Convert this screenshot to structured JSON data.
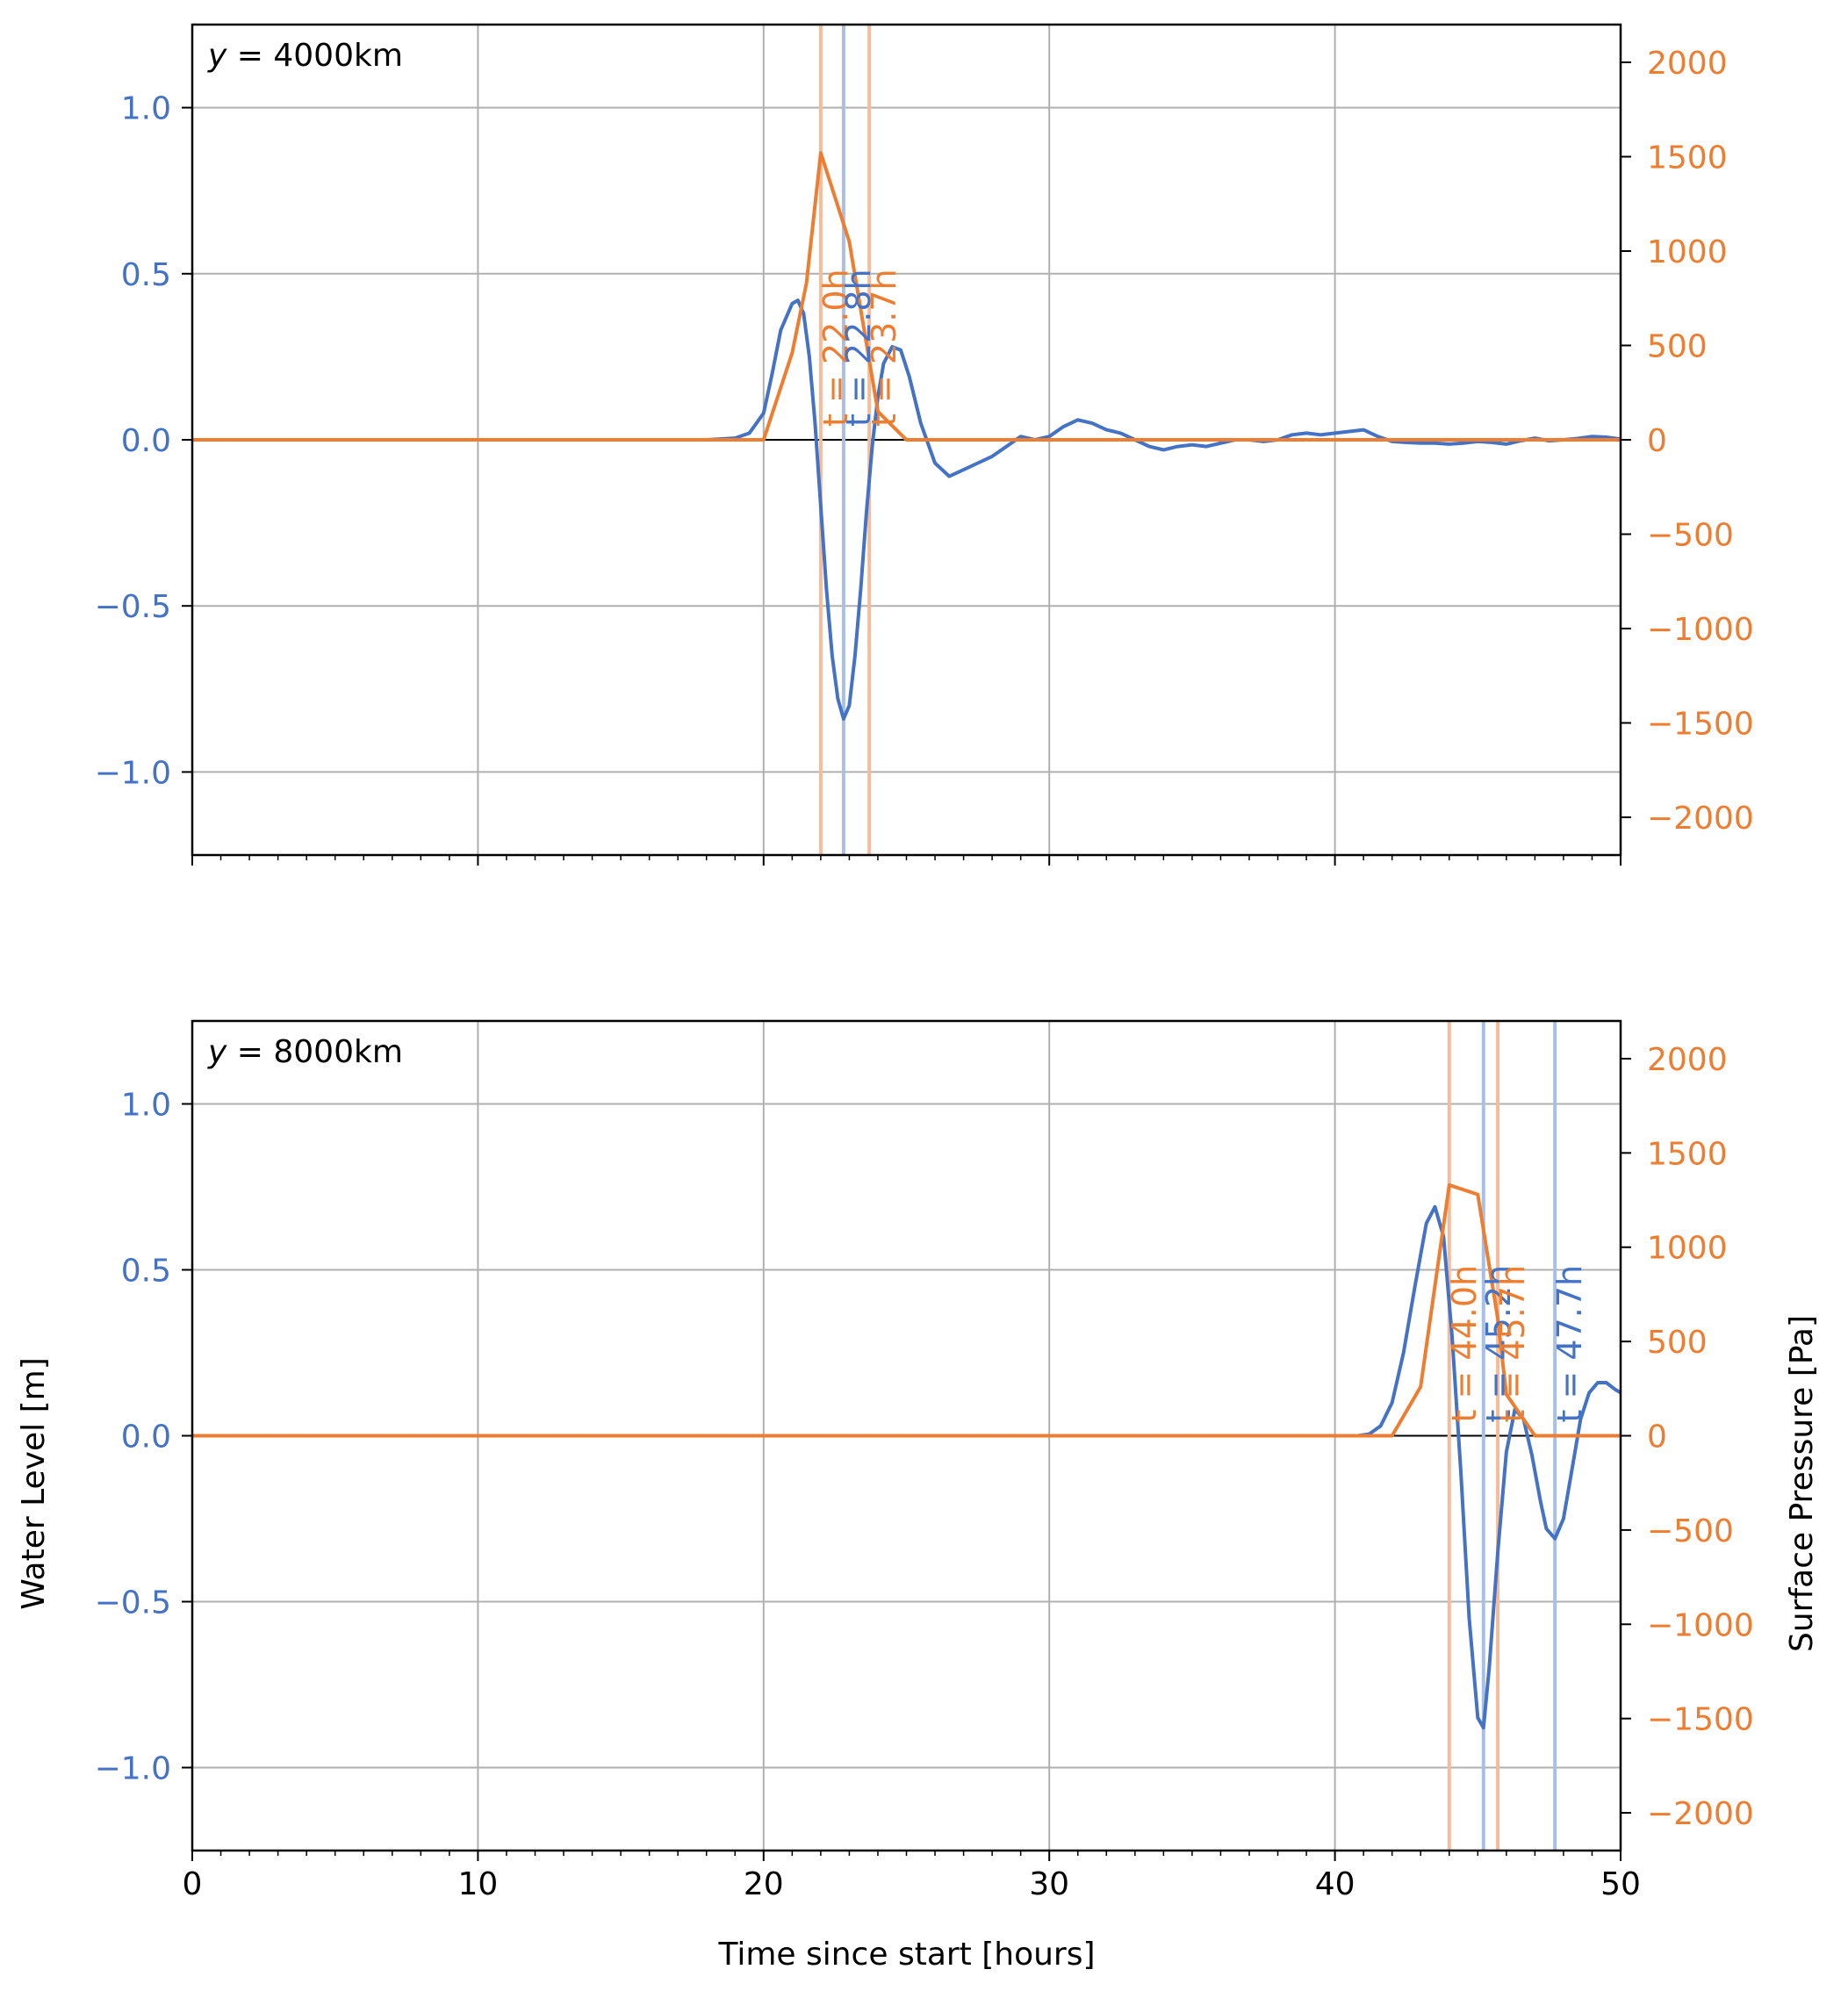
{
  "chart_data": {
    "type": "line",
    "xlabel": "Time since start [hours]",
    "ylabel_left": "Water Level [m]",
    "ylabel_right": "Surface Pressure [Pa]",
    "xlim": [
      0,
      50
    ],
    "ylim_left": [
      -1.25,
      1.25
    ],
    "ylim_right": [
      -2200,
      2200
    ],
    "x_ticks": [
      0,
      10,
      20,
      30,
      40,
      50
    ],
    "x_tick_labels": [
      "0",
      "10",
      "20",
      "30",
      "40",
      "50"
    ],
    "y_ticks_left": [
      -1.0,
      -0.5,
      0.0,
      0.5,
      1.0
    ],
    "y_tick_labels_left": [
      "−1.0",
      "−0.5",
      "0.0",
      "0.5",
      "1.0"
    ],
    "y_ticks_right": [
      -2000,
      -1500,
      -1000,
      -500,
      0,
      500,
      1000,
      1500,
      2000
    ],
    "y_tick_labels_right": [
      "−2000",
      "−1500",
      "−1000",
      "−500",
      "0",
      "500",
      "1000",
      "1500",
      "2000"
    ],
    "grid": true,
    "colors": {
      "water": "#4472c4",
      "pressure": "#ed7d31",
      "water_vline": "#a9c0e6",
      "pressure_vline": "#f4bc9a"
    },
    "panels": [
      {
        "label_var": "y",
        "label_value": "= 4000km",
        "water_level": {
          "x": [
            0,
            18,
            19,
            19.5,
            20,
            20.3,
            20.6,
            21,
            21.2,
            21.4,
            21.6,
            21.8,
            22,
            22.2,
            22.4,
            22.6,
            22.8,
            23,
            23.2,
            23.4,
            23.6,
            23.8,
            24,
            24.2,
            24.5,
            24.8,
            25.1,
            25.5,
            26,
            26.5,
            27,
            27.5,
            28,
            28.5,
            29,
            29.5,
            30,
            30.5,
            31,
            31.5,
            32,
            32.5,
            33,
            33.5,
            34,
            34.5,
            35,
            35.5,
            36,
            36.5,
            37,
            37.5,
            38,
            38.5,
            39,
            39.5,
            40,
            40.5,
            41,
            41.5,
            42,
            42.5,
            43,
            43.5,
            44,
            44.5,
            45,
            45.5,
            46,
            46.5,
            47,
            47.5,
            48,
            48.5,
            49,
            49.5,
            50
          ],
          "y": [
            0,
            0,
            0.005,
            0.02,
            0.08,
            0.2,
            0.33,
            0.41,
            0.42,
            0.38,
            0.25,
            0.05,
            -0.2,
            -0.45,
            -0.65,
            -0.78,
            -0.84,
            -0.8,
            -0.65,
            -0.45,
            -0.22,
            -0.02,
            0.13,
            0.23,
            0.28,
            0.27,
            0.19,
            0.05,
            -0.07,
            -0.11,
            -0.09,
            -0.07,
            -0.05,
            -0.02,
            0.01,
            0.0,
            0.01,
            0.04,
            0.06,
            0.05,
            0.03,
            0.02,
            0.0,
            -0.02,
            -0.03,
            -0.02,
            -0.015,
            -0.02,
            -0.01,
            0.0,
            0.0,
            -0.005,
            0.0,
            0.015,
            0.02,
            0.015,
            0.02,
            0.025,
            0.03,
            0.01,
            -0.005,
            -0.008,
            -0.01,
            -0.01,
            -0.013,
            -0.01,
            -0.005,
            -0.008,
            -0.013,
            -0.003,
            0.005,
            -0.003,
            0.0,
            0.004,
            0.01,
            0.008,
            0.002
          ]
        },
        "surface_pressure": {
          "x": [
            0,
            20,
            21,
            21.5,
            22,
            23,
            24,
            25,
            50
          ],
          "y": [
            0,
            0,
            460,
            830,
            1520,
            1050,
            150,
            0,
            0
          ]
        },
        "vlines": [
          {
            "x": 22.0,
            "series": "pressure",
            "label": "t = 22.0h"
          },
          {
            "x": 22.8,
            "series": "water",
            "label": "t = 22.8h"
          },
          {
            "x": 23.7,
            "series": "pressure",
            "label": "t = 23.7h"
          }
        ]
      },
      {
        "label_var": "y",
        "label_value": "= 8000km",
        "water_level": {
          "x": [
            0,
            40.8,
            41.2,
            41.6,
            42.0,
            42.4,
            42.8,
            43.2,
            43.5,
            43.8,
            44.1,
            44.4,
            44.7,
            45.0,
            45.2,
            45.4,
            45.7,
            46.0,
            46.3,
            46.6,
            46.9,
            47.2,
            47.4,
            47.7,
            48.0,
            48.3,
            48.6,
            48.9,
            49.2,
            49.5,
            49.8,
            50
          ],
          "y": [
            0,
            0,
            0.005,
            0.03,
            0.1,
            0.25,
            0.45,
            0.64,
            0.69,
            0.6,
            0.3,
            -0.1,
            -0.55,
            -0.85,
            -0.88,
            -0.7,
            -0.35,
            -0.05,
            0.08,
            0.05,
            -0.06,
            -0.2,
            -0.28,
            -0.31,
            -0.25,
            -0.1,
            0.05,
            0.13,
            0.16,
            0.16,
            0.14,
            0.13
          ]
        },
        "surface_pressure": {
          "x": [
            0,
            42,
            43,
            44,
            45,
            45.7,
            46,
            47,
            50
          ],
          "y": [
            0,
            0,
            260,
            1330,
            1280,
            620,
            220,
            0,
            0
          ]
        },
        "vlines": [
          {
            "x": 44.0,
            "series": "pressure",
            "label": "t = 44.0h"
          },
          {
            "x": 45.2,
            "series": "water",
            "label": "t = 45.2h"
          },
          {
            "x": 45.7,
            "series": "pressure",
            "label": "t = 45.7h"
          },
          {
            "x": 47.7,
            "series": "water",
            "label": "t = 47.7h"
          }
        ]
      }
    ]
  }
}
